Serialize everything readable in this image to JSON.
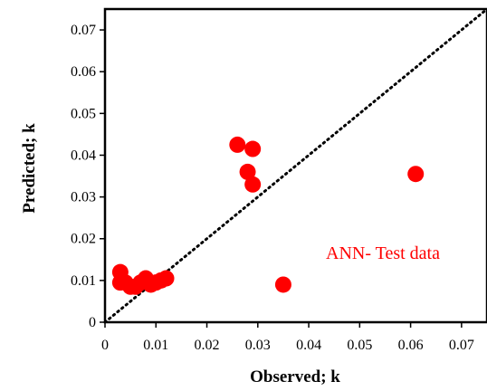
{
  "chart_data": {
    "type": "scatter",
    "xlabel": "Observed; k",
    "ylabel": "Predicted; k",
    "xlim": [
      0,
      0.075
    ],
    "ylim": [
      0,
      0.075
    ],
    "xticks": [
      "0",
      "0.01",
      "0.02",
      "0.03",
      "0.04",
      "0.05",
      "0.06",
      "0.07"
    ],
    "yticks": [
      "0",
      "0.01",
      "0.02",
      "0.03",
      "0.04",
      "0.05",
      "0.06",
      "0.07"
    ],
    "xtick_values": [
      0,
      0.01,
      0.02,
      0.03,
      0.04,
      0.05,
      0.06,
      0.07
    ],
    "ytick_values": [
      0,
      0.01,
      0.02,
      0.03,
      0.04,
      0.05,
      0.06,
      0.07
    ],
    "series": [
      {
        "name": "ANN- Test data",
        "color": "#ff0000",
        "points": [
          {
            "x": 0.003,
            "y": 0.012
          },
          {
            "x": 0.003,
            "y": 0.0095
          },
          {
            "x": 0.004,
            "y": 0.0095
          },
          {
            "x": 0.005,
            "y": 0.0085
          },
          {
            "x": 0.006,
            "y": 0.0085
          },
          {
            "x": 0.007,
            "y": 0.0095
          },
          {
            "x": 0.008,
            "y": 0.0105
          },
          {
            "x": 0.009,
            "y": 0.009
          },
          {
            "x": 0.01,
            "y": 0.0095
          },
          {
            "x": 0.011,
            "y": 0.01
          },
          {
            "x": 0.012,
            "y": 0.0105
          },
          {
            "x": 0.026,
            "y": 0.0425
          },
          {
            "x": 0.028,
            "y": 0.036
          },
          {
            "x": 0.029,
            "y": 0.0415
          },
          {
            "x": 0.029,
            "y": 0.033
          },
          {
            "x": 0.035,
            "y": 0.009
          },
          {
            "x": 0.061,
            "y": 0.0355
          }
        ]
      }
    ],
    "reference_line": {
      "type": "1:1",
      "style": "dotted",
      "color": "#000000"
    },
    "annotation": {
      "text": "ANN- Test data",
      "color": "#ff0000"
    },
    "grid": false
  }
}
